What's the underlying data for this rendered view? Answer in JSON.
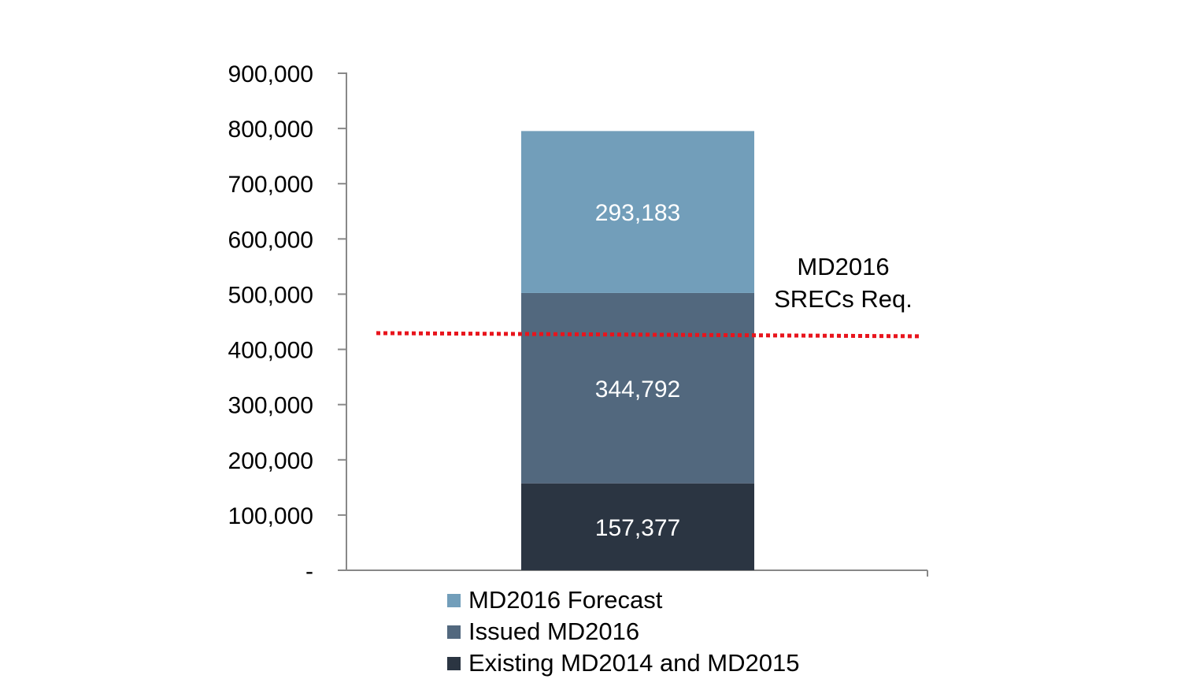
{
  "chart_data": {
    "type": "bar",
    "stacked": true,
    "categories": [
      ""
    ],
    "ylim": [
      0,
      900000
    ],
    "yticks": [
      0,
      100000,
      200000,
      300000,
      400000,
      500000,
      600000,
      700000,
      800000,
      900000
    ],
    "ytick_labels": [
      "-",
      "100,000",
      "200,000",
      "300,000",
      "400,000",
      "500,000",
      "600,000",
      "700,000",
      "800,000",
      "900,000"
    ],
    "series": [
      {
        "name": "Existing MD2014 and MD2015",
        "values": [
          157377
        ],
        "label": "157,377",
        "color": "#2b3542"
      },
      {
        "name": "Issued MD2016",
        "values": [
          344792
        ],
        "label": "344,792",
        "color": "#52687e"
      },
      {
        "name": "MD2016 Forecast",
        "values": [
          293183
        ],
        "label": "293,183",
        "color": "#729eba"
      }
    ],
    "reference_line": {
      "value": 428000,
      "color": "#e8141c",
      "style": "dotted",
      "label_lines": [
        "MD2016",
        "SRECs Req."
      ]
    },
    "legend_order": [
      "MD2016 Forecast",
      "Issued MD2016",
      "Existing MD2014 and MD2015"
    ],
    "legend_position": "bottom",
    "grid": false
  }
}
